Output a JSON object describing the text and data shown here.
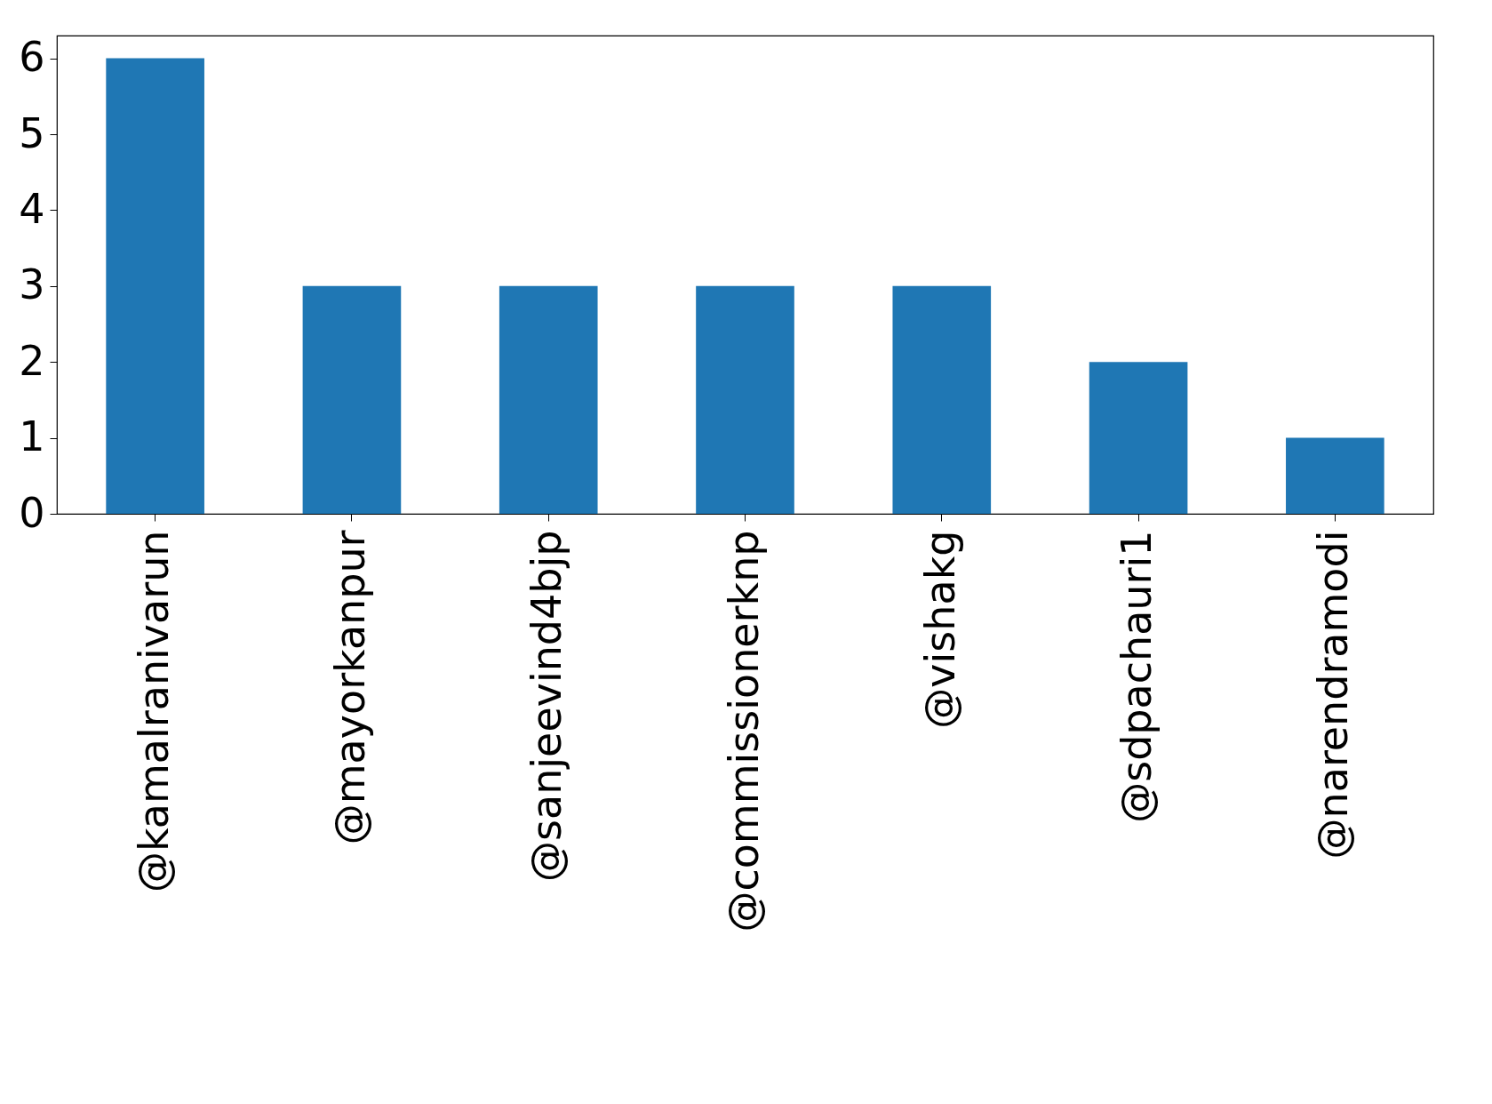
{
  "chart_data": {
    "type": "bar",
    "categories": [
      "@kamalranivarun",
      "@mayorkanpur",
      "@sanjeevind4bjp",
      "@commissionerknp",
      "@vishakg",
      "@sdpachauri1",
      "@narendramodi"
    ],
    "values": [
      6,
      3,
      3,
      3,
      3,
      2,
      1
    ],
    "color": "#1f77b4",
    "ylim": [
      0,
      6.3
    ],
    "yticks": [
      0,
      1,
      2,
      3,
      4,
      5,
      6
    ],
    "grid": false
  }
}
